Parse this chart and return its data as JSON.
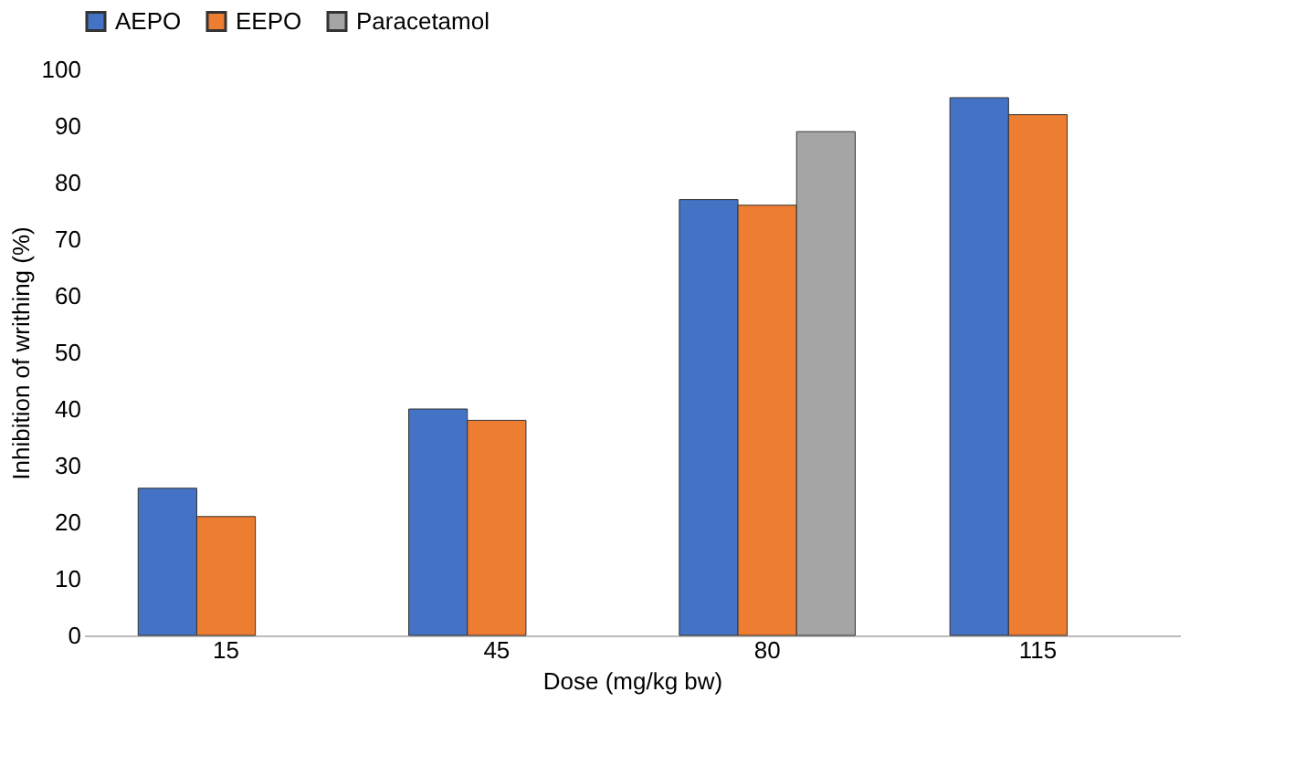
{
  "chart_data": {
    "type": "bar",
    "xlabel": "Dose (mg/kg bw)",
    "ylabel": "Inhibition of writhing (%)",
    "categories": [
      "15",
      "45",
      "80",
      "115"
    ],
    "series": [
      {
        "name": "AEPO",
        "color": "#4472c4",
        "values": [
          26,
          40,
          77,
          95
        ]
      },
      {
        "name": "EEPO",
        "color": "#ed7d31",
        "values": [
          21,
          38,
          76,
          92
        ]
      },
      {
        "name": "Paracetamol",
        "color": "#a5a5a5",
        "values": [
          null,
          null,
          89,
          null
        ]
      }
    ],
    "ylim": [
      0,
      100
    ],
    "yticks": [
      0,
      10,
      20,
      30,
      40,
      50,
      60,
      70,
      80,
      90,
      100
    ],
    "grid": false,
    "legend": "top"
  }
}
